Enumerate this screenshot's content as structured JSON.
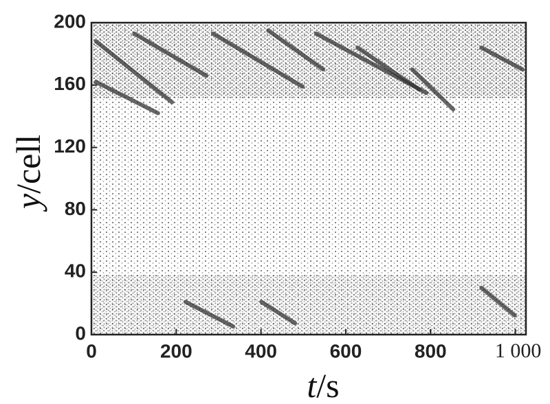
{
  "chart_data": {
    "type": "spacetime",
    "x_label_var": "t",
    "x_label_unit": "/s",
    "y_label_var": "y",
    "y_label_unit": "/cell",
    "xlim": [
      0,
      1025
    ],
    "ylim": [
      0,
      200
    ],
    "xticks": [
      0,
      200,
      400,
      600,
      800,
      {
        "value": 1000,
        "label": "1 000"
      }
    ],
    "yticks": [
      0,
      40,
      80,
      120,
      160,
      200
    ],
    "color": "#333333",
    "series": [
      {
        "x": [
          11,
          190
        ],
        "values": [
          188,
          149
        ]
      },
      {
        "x": [
          11,
          157
        ],
        "values": [
          162,
          142
        ]
      },
      {
        "x": [
          101,
          271
        ],
        "values": [
          193,
          166
        ]
      },
      {
        "x": [
          287,
          498
        ],
        "values": [
          193,
          159
        ]
      },
      {
        "x": [
          417,
          547
        ],
        "values": [
          195,
          170
        ]
      },
      {
        "x": [
          530,
          790
        ],
        "values": [
          193,
          155
        ]
      },
      {
        "x": [
          628,
          774
        ],
        "values": [
          184,
          157
        ]
      },
      {
        "x": [
          757,
          855
        ],
        "values": [
          170,
          144
        ]
      },
      {
        "x": [
          920,
          1017
        ],
        "values": [
          184,
          170
        ]
      },
      {
        "x": [
          222,
          336
        ],
        "values": [
          21,
          5
        ]
      },
      {
        "x": [
          401,
          482
        ],
        "values": [
          21,
          7
        ]
      },
      {
        "x": [
          920,
          1000
        ],
        "values": [
          30,
          12
        ]
      }
    ]
  }
}
